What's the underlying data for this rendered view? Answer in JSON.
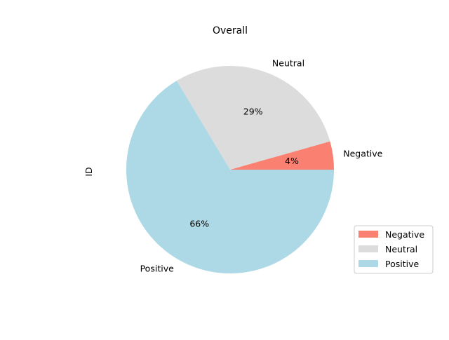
{
  "chart_data": {
    "type": "pie",
    "title": "Overall",
    "ylabel": "ID",
    "slices": [
      {
        "label": "Negative",
        "percent_label": "4%",
        "value": 4.4,
        "color": "#fa8072"
      },
      {
        "label": "Neutral",
        "percent_label": "29%",
        "value": 29.2,
        "color": "#dcdcdc"
      },
      {
        "label": "Positive",
        "percent_label": "66%",
        "value": 66.4,
        "color": "#add8e6"
      }
    ],
    "start_angle_deg": 0,
    "direction": "counterclockwise",
    "legend": {
      "placement": "lower-right",
      "entries": [
        "Negative",
        "Neutral",
        "Positive"
      ]
    }
  }
}
